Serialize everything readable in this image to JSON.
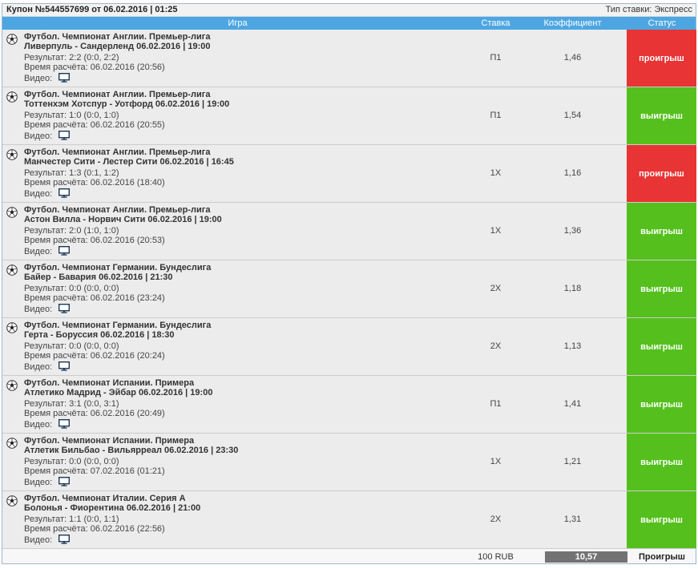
{
  "coupon": {
    "title": "Купон №544557699 от 06.02.2016 | 01:25",
    "bet_type": "Тип ставки: Экспресс"
  },
  "headers": {
    "game": "Игра",
    "bet": "Ставка",
    "coef": "Коэффициент",
    "status": "Статус"
  },
  "labels": {
    "video": "Видео:"
  },
  "colors": {
    "header_bg": "#4da6e2",
    "lose": "#e83434",
    "win": "#55c01d",
    "total_bg": "#737373"
  },
  "rows": [
    {
      "league": "Футбол. Чемпионат Англии. Премьер-лига",
      "match": "Ливерпуль - Сандерленд 06.02.2016 | 19:00",
      "result": "Результат: 2:2 (0:0, 2:2)",
      "calc": "Время расчёта: 06.02.2016 (20:56)",
      "bet": "П1",
      "coef": "1,46",
      "status": "проигрыш",
      "status_type": "lose"
    },
    {
      "league": "Футбол. Чемпионат Англии. Премьер-лига",
      "match": "Тоттенхэм Хотспур - Уотфорд 06.02.2016 | 19:00",
      "result": "Результат: 1:0 (0:0, 1:0)",
      "calc": "Время расчёта: 06.02.2016 (20:55)",
      "bet": "П1",
      "coef": "1,54",
      "status": "выигрыш",
      "status_type": "win"
    },
    {
      "league": "Футбол. Чемпионат Англии. Премьер-лига",
      "match": "Манчестер Сити - Лестер Сити 06.02.2016 | 16:45",
      "result": "Результат: 1:3 (0:1, 1:2)",
      "calc": "Время расчёта: 06.02.2016 (18:40)",
      "bet": "1Х",
      "coef": "1,16",
      "status": "проигрыш",
      "status_type": "lose"
    },
    {
      "league": "Футбол. Чемпионат Англии. Премьер-лига",
      "match": "Астон Вилла - Норвич Сити 06.02.2016 | 19:00",
      "result": "Результат: 2:0 (1:0, 1:0)",
      "calc": "Время расчёта: 06.02.2016 (20:53)",
      "bet": "1Х",
      "coef": "1,36",
      "status": "выигрыш",
      "status_type": "win"
    },
    {
      "league": "Футбол. Чемпионат Германии. Бундеслига",
      "match": "Байер - Бавария 06.02.2016 | 21:30",
      "result": "Результат: 0:0 (0:0, 0:0)",
      "calc": "Время расчёта: 06.02.2016 (23:24)",
      "bet": "2Х",
      "coef": "1,18",
      "status": "выигрыш",
      "status_type": "win"
    },
    {
      "league": "Футбол. Чемпионат Германии. Бундеслига",
      "match": "Герта - Боруссия 06.02.2016 | 18:30",
      "result": "Результат: 0:0 (0:0, 0:0)",
      "calc": "Время расчёта: 06.02.2016 (20:24)",
      "bet": "2Х",
      "coef": "1,13",
      "status": "выигрыш",
      "status_type": "win"
    },
    {
      "league": "Футбол. Чемпионат Испании. Примера",
      "match": "Атлетико Мадрид - Эйбар 06.02.2016 | 19:00",
      "result": "Результат: 3:1 (0:0, 3:1)",
      "calc": "Время расчёта: 06.02.2016 (20:49)",
      "bet": "П1",
      "coef": "1,41",
      "status": "выигрыш",
      "status_type": "win"
    },
    {
      "league": "Футбол. Чемпионат Испании. Примера",
      "match": "Атлетик Бильбао - Вильярреал 06.02.2016 | 23:30",
      "result": "Результат: 0:0 (0:0, 0:0)",
      "calc": "Время расчёта: 07.02.2016 (01:21)",
      "bet": "1Х",
      "coef": "1,21",
      "status": "выигрыш",
      "status_type": "win"
    },
    {
      "league": "Футбол. Чемпионат Италии. Серия А",
      "match": "Болонья - Фиорентина 06.02.2016 | 21:00",
      "result": "Результат: 1:1 (0:0, 1:1)",
      "calc": "Время расчёта: 06.02.2016 (22:56)",
      "bet": "2Х",
      "coef": "1,31",
      "status": "выигрыш",
      "status_type": "win"
    }
  ],
  "footer": {
    "stake": "100 RUB",
    "total_coef": "10,57",
    "result": "Проигрыш"
  }
}
